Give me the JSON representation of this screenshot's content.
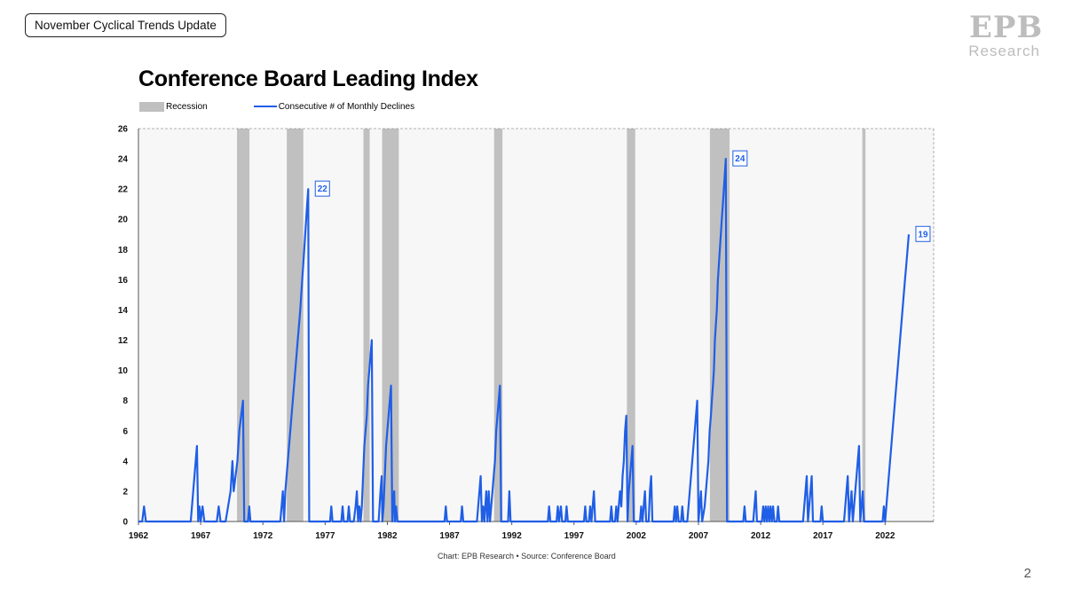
{
  "header": {
    "title": "November Cyclical Trends Update"
  },
  "logo": {
    "mark": "EPB",
    "word": "Research"
  },
  "page_number": "2",
  "footer": {
    "source": "Chart: EPB Research  •  Source: Conference Board"
  },
  "colors": {
    "line": "#1f5ee6",
    "recession": "#c0c0c0",
    "plot_bg": "#f7f7f7"
  },
  "chart_data": {
    "type": "line",
    "title": "Conference Board Leading Index",
    "legend": [
      "Recession",
      "Consecutive # of Monthly Declines"
    ],
    "legend_position": "top-left",
    "xlim": [
      1962,
      2025.9
    ],
    "ylim": [
      0,
      26
    ],
    "x_ticks": [
      1962,
      1967,
      1972,
      1977,
      1982,
      1987,
      1992,
      1997,
      2002,
      2007,
      2012,
      2017,
      2022
    ],
    "y_ticks": [
      0,
      2,
      4,
      6,
      8,
      10,
      12,
      14,
      16,
      18,
      20,
      22,
      24,
      26
    ],
    "recessions": [
      [
        1969.92,
        1970.92
      ],
      [
        1973.92,
        1975.25
      ],
      [
        1980.08,
        1980.58
      ],
      [
        1981.58,
        1982.92
      ],
      [
        1990.58,
        1991.25
      ],
      [
        2001.25,
        2001.92
      ],
      [
        2007.92,
        2009.5
      ],
      [
        2020.17,
        2020.42
      ]
    ],
    "series": [
      {
        "name": "Consecutive # of Monthly Declines",
        "points": [
          [
            1962.0,
            0
          ],
          [
            1962.3,
            0
          ],
          [
            1962.45,
            1
          ],
          [
            1962.6,
            0
          ],
          [
            1966.2,
            0
          ],
          [
            1966.3,
            1
          ],
          [
            1966.4,
            2
          ],
          [
            1966.5,
            3
          ],
          [
            1966.6,
            4
          ],
          [
            1966.7,
            5
          ],
          [
            1966.8,
            0
          ],
          [
            1966.9,
            1
          ],
          [
            1967.0,
            0
          ],
          [
            1967.15,
            1
          ],
          [
            1967.3,
            0
          ],
          [
            1968.3,
            0
          ],
          [
            1968.45,
            1
          ],
          [
            1968.6,
            0
          ],
          [
            1969.0,
            0
          ],
          [
            1969.2,
            1
          ],
          [
            1969.4,
            2
          ],
          [
            1969.55,
            4
          ],
          [
            1969.65,
            2
          ],
          [
            1969.8,
            3
          ],
          [
            1969.95,
            4
          ],
          [
            1970.1,
            6
          ],
          [
            1970.25,
            7
          ],
          [
            1970.4,
            8
          ],
          [
            1970.5,
            0
          ],
          [
            1970.8,
            0
          ],
          [
            1970.9,
            1
          ],
          [
            1971.0,
            0
          ],
          [
            1973.4,
            0
          ],
          [
            1973.5,
            1
          ],
          [
            1973.6,
            2
          ],
          [
            1973.7,
            0
          ],
          [
            1973.8,
            2
          ],
          [
            1973.9,
            3
          ],
          [
            1974.0,
            4
          ],
          [
            1974.1,
            5
          ],
          [
            1974.2,
            6
          ],
          [
            1974.3,
            7
          ],
          [
            1974.4,
            8
          ],
          [
            1974.5,
            9
          ],
          [
            1974.6,
            10
          ],
          [
            1974.7,
            11
          ],
          [
            1974.8,
            12
          ],
          [
            1974.9,
            13
          ],
          [
            1975.0,
            14
          ],
          [
            1975.08,
            15
          ],
          [
            1975.16,
            16
          ],
          [
            1975.24,
            17
          ],
          [
            1975.32,
            18
          ],
          [
            1975.4,
            19
          ],
          [
            1975.48,
            20
          ],
          [
            1975.56,
            21
          ],
          [
            1975.64,
            22
          ],
          [
            1975.72,
            0
          ],
          [
            1977.4,
            0
          ],
          [
            1977.5,
            1
          ],
          [
            1977.6,
            0
          ],
          [
            1978.3,
            0
          ],
          [
            1978.4,
            1
          ],
          [
            1978.5,
            0
          ],
          [
            1978.8,
            0
          ],
          [
            1978.9,
            1
          ],
          [
            1979.0,
            0
          ],
          [
            1979.3,
            0
          ],
          [
            1979.45,
            1
          ],
          [
            1979.55,
            2
          ],
          [
            1979.65,
            0
          ],
          [
            1979.75,
            1
          ],
          [
            1979.85,
            0
          ],
          [
            1979.95,
            1
          ],
          [
            1980.05,
            3
          ],
          [
            1980.15,
            5
          ],
          [
            1980.25,
            6
          ],
          [
            1980.35,
            7
          ],
          [
            1980.45,
            9
          ],
          [
            1980.55,
            10
          ],
          [
            1980.65,
            11
          ],
          [
            1980.75,
            12
          ],
          [
            1980.85,
            0
          ],
          [
            1981.3,
            0
          ],
          [
            1981.45,
            2
          ],
          [
            1981.55,
            3
          ],
          [
            1981.6,
            0
          ],
          [
            1981.7,
            1
          ],
          [
            1981.8,
            3
          ],
          [
            1981.9,
            5
          ],
          [
            1982.0,
            6
          ],
          [
            1982.1,
            7
          ],
          [
            1982.2,
            8
          ],
          [
            1982.3,
            9
          ],
          [
            1982.4,
            0
          ],
          [
            1982.45,
            1
          ],
          [
            1982.55,
            2
          ],
          [
            1982.6,
            0
          ],
          [
            1982.7,
            1
          ],
          [
            1982.8,
            0
          ],
          [
            1986.6,
            0
          ],
          [
            1986.7,
            1
          ],
          [
            1986.8,
            0
          ],
          [
            1987.9,
            0
          ],
          [
            1988.0,
            1
          ],
          [
            1988.1,
            0
          ],
          [
            1989.2,
            0
          ],
          [
            1989.3,
            1
          ],
          [
            1989.4,
            2
          ],
          [
            1989.5,
            3
          ],
          [
            1989.6,
            0
          ],
          [
            1989.7,
            1
          ],
          [
            1989.8,
            0
          ],
          [
            1989.95,
            2
          ],
          [
            1990.05,
            0
          ],
          [
            1990.15,
            2
          ],
          [
            1990.25,
            0
          ],
          [
            1990.35,
            1
          ],
          [
            1990.45,
            2
          ],
          [
            1990.55,
            3
          ],
          [
            1990.65,
            4
          ],
          [
            1990.75,
            6
          ],
          [
            1990.85,
            7
          ],
          [
            1990.95,
            8
          ],
          [
            1991.05,
            9
          ],
          [
            1991.15,
            0
          ],
          [
            1991.7,
            0
          ],
          [
            1991.8,
            2
          ],
          [
            1991.9,
            0
          ],
          [
            1994.9,
            0
          ],
          [
            1995.0,
            1
          ],
          [
            1995.1,
            0
          ],
          [
            1995.6,
            0
          ],
          [
            1995.7,
            1
          ],
          [
            1995.8,
            0
          ],
          [
            1995.95,
            1
          ],
          [
            1996.05,
            0
          ],
          [
            1996.3,
            0
          ],
          [
            1996.4,
            1
          ],
          [
            1996.5,
            0
          ],
          [
            1997.8,
            0
          ],
          [
            1997.9,
            1
          ],
          [
            1998.0,
            0
          ],
          [
            1998.2,
            0
          ],
          [
            1998.3,
            1
          ],
          [
            1998.4,
            0
          ],
          [
            1998.5,
            1
          ],
          [
            1998.6,
            2
          ],
          [
            1998.7,
            0
          ],
          [
            1999.9,
            0
          ],
          [
            2000.0,
            1
          ],
          [
            2000.1,
            0
          ],
          [
            2000.3,
            0
          ],
          [
            2000.4,
            1
          ],
          [
            2000.5,
            0
          ],
          [
            2000.6,
            1
          ],
          [
            2000.7,
            2
          ],
          [
            2000.8,
            1
          ],
          [
            2000.9,
            3
          ],
          [
            2001.0,
            4
          ],
          [
            2001.1,
            6
          ],
          [
            2001.2,
            7
          ],
          [
            2001.3,
            0
          ],
          [
            2001.4,
            2
          ],
          [
            2001.5,
            3
          ],
          [
            2001.6,
            4
          ],
          [
            2001.7,
            5
          ],
          [
            2001.8,
            0
          ],
          [
            2002.3,
            0
          ],
          [
            2002.4,
            1
          ],
          [
            2002.5,
            0
          ],
          [
            2002.6,
            1
          ],
          [
            2002.7,
            2
          ],
          [
            2002.8,
            0
          ],
          [
            2003.0,
            0
          ],
          [
            2003.1,
            2
          ],
          [
            2003.2,
            3
          ],
          [
            2003.3,
            0
          ],
          [
            2005.0,
            0
          ],
          [
            2005.1,
            1
          ],
          [
            2005.2,
            0
          ],
          [
            2005.3,
            1
          ],
          [
            2005.4,
            0
          ],
          [
            2005.6,
            0
          ],
          [
            2005.7,
            1
          ],
          [
            2005.8,
            0
          ],
          [
            2006.1,
            0
          ],
          [
            2006.2,
            1
          ],
          [
            2006.3,
            2
          ],
          [
            2006.4,
            3
          ],
          [
            2006.5,
            4
          ],
          [
            2006.6,
            5
          ],
          [
            2006.7,
            6
          ],
          [
            2006.8,
            7
          ],
          [
            2006.9,
            8
          ],
          [
            2007.0,
            0
          ],
          [
            2007.1,
            1
          ],
          [
            2007.2,
            2
          ],
          [
            2007.3,
            0
          ],
          [
            2007.5,
            1
          ],
          [
            2007.6,
            2
          ],
          [
            2007.7,
            3
          ],
          [
            2007.8,
            4
          ],
          [
            2007.9,
            6
          ],
          [
            2008.0,
            7
          ],
          [
            2008.08,
            8
          ],
          [
            2008.16,
            9
          ],
          [
            2008.24,
            10
          ],
          [
            2008.32,
            12
          ],
          [
            2008.4,
            13
          ],
          [
            2008.48,
            14
          ],
          [
            2008.56,
            16
          ],
          [
            2008.64,
            17
          ],
          [
            2008.72,
            18
          ],
          [
            2008.8,
            19
          ],
          [
            2008.88,
            20
          ],
          [
            2008.96,
            21
          ],
          [
            2009.04,
            22
          ],
          [
            2009.12,
            23
          ],
          [
            2009.2,
            24
          ],
          [
            2009.3,
            0
          ],
          [
            2010.6,
            0
          ],
          [
            2010.7,
            1
          ],
          [
            2010.8,
            0
          ],
          [
            2011.4,
            0
          ],
          [
            2011.5,
            1
          ],
          [
            2011.6,
            2
          ],
          [
            2011.7,
            0
          ],
          [
            2012.1,
            0
          ],
          [
            2012.2,
            1
          ],
          [
            2012.3,
            0
          ],
          [
            2012.4,
            1
          ],
          [
            2012.5,
            0
          ],
          [
            2012.6,
            1
          ],
          [
            2012.7,
            0
          ],
          [
            2012.8,
            1
          ],
          [
            2012.9,
            0
          ],
          [
            2013.0,
            1
          ],
          [
            2013.1,
            0
          ],
          [
            2013.3,
            0
          ],
          [
            2013.4,
            1
          ],
          [
            2013.5,
            0
          ],
          [
            2015.4,
            0
          ],
          [
            2015.5,
            1
          ],
          [
            2015.6,
            2
          ],
          [
            2015.7,
            3
          ],
          [
            2015.8,
            0
          ],
          [
            2015.9,
            1
          ],
          [
            2016.0,
            2
          ],
          [
            2016.1,
            3
          ],
          [
            2016.2,
            0
          ],
          [
            2016.8,
            0
          ],
          [
            2016.9,
            1
          ],
          [
            2017.0,
            0
          ],
          [
            2018.7,
            0
          ],
          [
            2018.8,
            1
          ],
          [
            2018.9,
            2
          ],
          [
            2019.0,
            3
          ],
          [
            2019.1,
            0
          ],
          [
            2019.2,
            1
          ],
          [
            2019.3,
            2
          ],
          [
            2019.4,
            0
          ],
          [
            2019.5,
            1
          ],
          [
            2019.6,
            2
          ],
          [
            2019.7,
            3
          ],
          [
            2019.8,
            4
          ],
          [
            2019.9,
            5
          ],
          [
            2020.0,
            0
          ],
          [
            2020.1,
            1
          ],
          [
            2020.2,
            2
          ],
          [
            2020.3,
            0
          ],
          [
            2021.8,
            0
          ],
          [
            2021.9,
            1
          ],
          [
            2022.0,
            0
          ],
          [
            2022.1,
            1
          ],
          [
            2022.2,
            2
          ],
          [
            2022.3,
            3
          ],
          [
            2022.4,
            4
          ],
          [
            2022.5,
            5
          ],
          [
            2022.6,
            6
          ],
          [
            2022.7,
            7
          ],
          [
            2022.8,
            8
          ],
          [
            2022.9,
            9
          ],
          [
            2023.0,
            10
          ],
          [
            2023.1,
            11
          ],
          [
            2023.2,
            12
          ],
          [
            2023.3,
            13
          ],
          [
            2023.4,
            14
          ],
          [
            2023.5,
            15
          ],
          [
            2023.6,
            16
          ],
          [
            2023.7,
            17
          ],
          [
            2023.8,
            18
          ],
          [
            2023.9,
            19
          ]
        ]
      }
    ],
    "annotations": [
      {
        "x": 1975.64,
        "y": 22,
        "label": "22"
      },
      {
        "x": 2009.2,
        "y": 24,
        "label": "24"
      },
      {
        "x": 2023.9,
        "y": 19,
        "label": "19"
      }
    ],
    "grid": false
  }
}
